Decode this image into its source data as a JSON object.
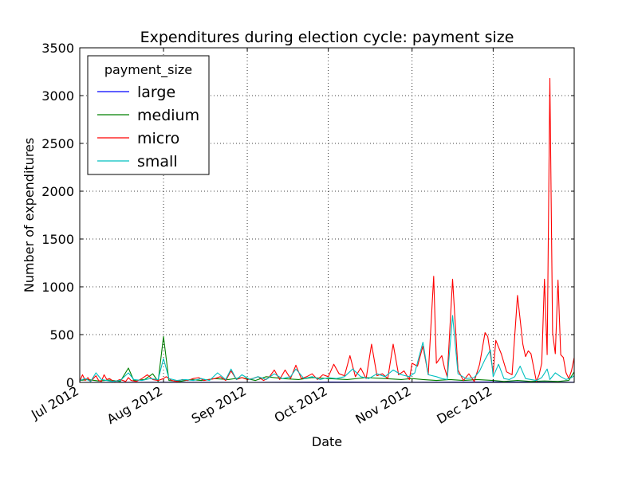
{
  "chart_data": {
    "type": "line",
    "title": "Expenditures during election cycle: payment size",
    "xlabel": "Date",
    "ylabel": "Number of expenditures",
    "xlim": [
      "2012-07-01",
      "2012-12-31"
    ],
    "ylim": [
      0,
      3500
    ],
    "y_ticks": [
      0,
      500,
      1000,
      1500,
      2000,
      2500,
      3000,
      3500
    ],
    "x_ticks": [
      {
        "date": "2012-07-01",
        "label": "Jul 2012"
      },
      {
        "date": "2012-08-01",
        "label": "Aug 2012"
      },
      {
        "date": "2012-09-01",
        "label": "Sep 2012"
      },
      {
        "date": "2012-10-01",
        "label": "Oct 2012"
      },
      {
        "date": "2012-11-01",
        "label": "Nov 2012"
      },
      {
        "date": "2012-12-01",
        "label": "Dec 2012"
      }
    ],
    "grid": true,
    "legend": {
      "title": "payment_size",
      "position": "top-left"
    },
    "series": [
      {
        "name": "large",
        "color": "#0000ff",
        "points": [
          [
            "2012-07-01",
            0
          ],
          [
            "2012-08-01",
            2
          ],
          [
            "2012-09-01",
            1
          ],
          [
            "2012-10-01",
            3
          ],
          [
            "2012-11-01",
            2
          ],
          [
            "2012-12-01",
            5
          ],
          [
            "2012-12-31",
            2
          ]
        ]
      },
      {
        "name": "medium",
        "color": "#008000",
        "points": [
          [
            "2012-07-01",
            20
          ],
          [
            "2012-07-04",
            30
          ],
          [
            "2012-07-08",
            15
          ],
          [
            "2012-07-12",
            25
          ],
          [
            "2012-07-16",
            10
          ],
          [
            "2012-07-19",
            150
          ],
          [
            "2012-07-21",
            20
          ],
          [
            "2012-07-25",
            30
          ],
          [
            "2012-07-28",
            90
          ],
          [
            "2012-07-30",
            10
          ],
          [
            "2012-08-01",
            480
          ],
          [
            "2012-08-03",
            20
          ],
          [
            "2012-08-07",
            10
          ],
          [
            "2012-08-11",
            30
          ],
          [
            "2012-08-15",
            20
          ],
          [
            "2012-08-20",
            40
          ],
          [
            "2012-08-25",
            30
          ],
          [
            "2012-08-30",
            50
          ],
          [
            "2012-09-04",
            20
          ],
          [
            "2012-09-08",
            60
          ],
          [
            "2012-09-14",
            40
          ],
          [
            "2012-09-20",
            30
          ],
          [
            "2012-09-25",
            50
          ],
          [
            "2012-10-01",
            40
          ],
          [
            "2012-10-08",
            30
          ],
          [
            "2012-10-15",
            50
          ],
          [
            "2012-10-22",
            40
          ],
          [
            "2012-10-28",
            30
          ],
          [
            "2012-11-01",
            40
          ],
          [
            "2012-11-05",
            30
          ],
          [
            "2012-11-10",
            20
          ],
          [
            "2012-11-15",
            30
          ],
          [
            "2012-11-20",
            20
          ],
          [
            "2012-11-25",
            30
          ],
          [
            "2012-12-01",
            20
          ],
          [
            "2012-12-05",
            10
          ],
          [
            "2012-12-10",
            20
          ],
          [
            "2012-12-15",
            10
          ],
          [
            "2012-12-20",
            15
          ],
          [
            "2012-12-25",
            10
          ],
          [
            "2012-12-29",
            20
          ],
          [
            "2012-12-31",
            110
          ]
        ]
      },
      {
        "name": "micro",
        "color": "#ff0000",
        "points": [
          [
            "2012-07-01",
            10
          ],
          [
            "2012-07-02",
            80
          ],
          [
            "2012-07-03",
            20
          ],
          [
            "2012-07-04",
            50
          ],
          [
            "2012-07-05",
            10
          ],
          [
            "2012-07-06",
            40
          ],
          [
            "2012-07-07",
            70
          ],
          [
            "2012-07-08",
            20
          ],
          [
            "2012-07-09",
            10
          ],
          [
            "2012-07-10",
            80
          ],
          [
            "2012-07-11",
            30
          ],
          [
            "2012-07-12",
            40
          ],
          [
            "2012-07-13",
            20
          ],
          [
            "2012-07-14",
            10
          ],
          [
            "2012-07-16",
            30
          ],
          [
            "2012-07-18",
            10
          ],
          [
            "2012-07-19",
            50
          ],
          [
            "2012-07-20",
            20
          ],
          [
            "2012-07-22",
            10
          ],
          [
            "2012-07-24",
            40
          ],
          [
            "2012-07-26",
            80
          ],
          [
            "2012-07-28",
            30
          ],
          [
            "2012-07-30",
            20
          ],
          [
            "2012-08-01",
            40
          ],
          [
            "2012-08-02",
            60
          ],
          [
            "2012-08-04",
            20
          ],
          [
            "2012-08-06",
            10
          ],
          [
            "2012-08-08",
            30
          ],
          [
            "2012-08-10",
            20
          ],
          [
            "2012-08-12",
            40
          ],
          [
            "2012-08-14",
            50
          ],
          [
            "2012-08-16",
            20
          ],
          [
            "2012-08-18",
            30
          ],
          [
            "2012-08-20",
            40
          ],
          [
            "2012-08-22",
            60
          ],
          [
            "2012-08-24",
            20
          ],
          [
            "2012-08-26",
            120
          ],
          [
            "2012-08-28",
            30
          ],
          [
            "2012-08-30",
            50
          ],
          [
            "2012-09-01",
            30
          ],
          [
            "2012-09-03",
            40
          ],
          [
            "2012-09-05",
            60
          ],
          [
            "2012-09-07",
            20
          ],
          [
            "2012-09-09",
            50
          ],
          [
            "2012-09-11",
            130
          ],
          [
            "2012-09-13",
            30
          ],
          [
            "2012-09-15",
            130
          ],
          [
            "2012-09-17",
            40
          ],
          [
            "2012-09-19",
            180
          ],
          [
            "2012-09-21",
            40
          ],
          [
            "2012-09-23",
            60
          ],
          [
            "2012-09-25",
            90
          ],
          [
            "2012-09-27",
            30
          ],
          [
            "2012-09-29",
            80
          ],
          [
            "2012-10-01",
            60
          ],
          [
            "2012-10-03",
            190
          ],
          [
            "2012-10-05",
            90
          ],
          [
            "2012-10-07",
            70
          ],
          [
            "2012-10-09",
            280
          ],
          [
            "2012-10-11",
            60
          ],
          [
            "2012-10-13",
            150
          ],
          [
            "2012-10-15",
            40
          ],
          [
            "2012-10-17",
            400
          ],
          [
            "2012-10-19",
            70
          ],
          [
            "2012-10-21",
            90
          ],
          [
            "2012-10-23",
            40
          ],
          [
            "2012-10-25",
            400
          ],
          [
            "2012-10-27",
            80
          ],
          [
            "2012-10-29",
            120
          ],
          [
            "2012-10-31",
            30
          ],
          [
            "2012-11-01",
            200
          ],
          [
            "2012-11-03",
            170
          ],
          [
            "2012-11-05",
            380
          ],
          [
            "2012-11-07",
            80
          ],
          [
            "2012-11-09",
            1110
          ],
          [
            "2012-11-10",
            200
          ],
          [
            "2012-11-12",
            280
          ],
          [
            "2012-11-13",
            150
          ],
          [
            "2012-11-14",
            60
          ],
          [
            "2012-11-16",
            1080
          ],
          [
            "2012-11-18",
            130
          ],
          [
            "2012-11-20",
            20
          ],
          [
            "2012-11-22",
            90
          ],
          [
            "2012-11-24",
            10
          ],
          [
            "2012-11-26",
            190
          ],
          [
            "2012-11-28",
            520
          ],
          [
            "2012-11-29",
            480
          ],
          [
            "2012-12-01",
            100
          ],
          [
            "2012-12-02",
            440
          ],
          [
            "2012-12-04",
            300
          ],
          [
            "2012-12-06",
            110
          ],
          [
            "2012-12-08",
            80
          ],
          [
            "2012-12-10",
            910
          ],
          [
            "2012-12-12",
            400
          ],
          [
            "2012-12-13",
            270
          ],
          [
            "2012-12-14",
            330
          ],
          [
            "2012-12-15",
            300
          ],
          [
            "2012-12-17",
            10
          ],
          [
            "2012-12-18",
            80
          ],
          [
            "2012-12-19",
            200
          ],
          [
            "2012-12-20",
            1080
          ],
          [
            "2012-12-21",
            290
          ],
          [
            "2012-12-22",
            3180
          ],
          [
            "2012-12-23",
            520
          ],
          [
            "2012-12-24",
            300
          ],
          [
            "2012-12-25",
            1070
          ],
          [
            "2012-12-26",
            290
          ],
          [
            "2012-12-27",
            260
          ],
          [
            "2012-12-28",
            100
          ],
          [
            "2012-12-29",
            40
          ],
          [
            "2012-12-30",
            120
          ],
          [
            "2012-12-31",
            260
          ]
        ]
      },
      {
        "name": "small",
        "color": "#00bfbf",
        "points": [
          [
            "2012-07-01",
            20
          ],
          [
            "2012-07-03",
            40
          ],
          [
            "2012-07-05",
            10
          ],
          [
            "2012-07-07",
            100
          ],
          [
            "2012-07-09",
            30
          ],
          [
            "2012-07-11",
            20
          ],
          [
            "2012-07-13",
            10
          ],
          [
            "2012-07-16",
            20
          ],
          [
            "2012-07-19",
            100
          ],
          [
            "2012-07-21",
            30
          ],
          [
            "2012-07-24",
            20
          ],
          [
            "2012-07-27",
            40
          ],
          [
            "2012-07-30",
            30
          ],
          [
            "2012-08-01",
            250
          ],
          [
            "2012-08-03",
            40
          ],
          [
            "2012-08-06",
            20
          ],
          [
            "2012-08-09",
            30
          ],
          [
            "2012-08-12",
            20
          ],
          [
            "2012-08-15",
            40
          ],
          [
            "2012-08-18",
            20
          ],
          [
            "2012-08-21",
            100
          ],
          [
            "2012-08-24",
            30
          ],
          [
            "2012-08-26",
            140
          ],
          [
            "2012-08-28",
            30
          ],
          [
            "2012-08-30",
            80
          ],
          [
            "2012-09-02",
            30
          ],
          [
            "2012-09-05",
            60
          ],
          [
            "2012-09-08",
            30
          ],
          [
            "2012-09-11",
            90
          ],
          [
            "2012-09-14",
            40
          ],
          [
            "2012-09-17",
            60
          ],
          [
            "2012-09-19",
            140
          ],
          [
            "2012-09-22",
            40
          ],
          [
            "2012-09-25",
            60
          ],
          [
            "2012-09-28",
            30
          ],
          [
            "2012-10-01",
            50
          ],
          [
            "2012-10-04",
            40
          ],
          [
            "2012-10-07",
            60
          ],
          [
            "2012-10-10",
            140
          ],
          [
            "2012-10-13",
            60
          ],
          [
            "2012-10-16",
            40
          ],
          [
            "2012-10-19",
            90
          ],
          [
            "2012-10-22",
            60
          ],
          [
            "2012-10-25",
            130
          ],
          [
            "2012-10-28",
            80
          ],
          [
            "2012-10-31",
            60
          ],
          [
            "2012-11-02",
            100
          ],
          [
            "2012-11-05",
            420
          ],
          [
            "2012-11-07",
            80
          ],
          [
            "2012-11-10",
            60
          ],
          [
            "2012-11-12",
            40
          ],
          [
            "2012-11-14",
            30
          ],
          [
            "2012-11-16",
            700
          ],
          [
            "2012-11-18",
            90
          ],
          [
            "2012-11-21",
            40
          ],
          [
            "2012-11-24",
            50
          ],
          [
            "2012-11-26",
            120
          ],
          [
            "2012-11-28",
            240
          ],
          [
            "2012-11-30",
            340
          ],
          [
            "2012-12-01",
            60
          ],
          [
            "2012-12-03",
            190
          ],
          [
            "2012-12-05",
            40
          ],
          [
            "2012-12-07",
            30
          ],
          [
            "2012-12-09",
            60
          ],
          [
            "2012-12-11",
            170
          ],
          [
            "2012-12-13",
            40
          ],
          [
            "2012-12-15",
            30
          ],
          [
            "2012-12-17",
            20
          ],
          [
            "2012-12-19",
            50
          ],
          [
            "2012-12-21",
            140
          ],
          [
            "2012-12-22",
            30
          ],
          [
            "2012-12-24",
            100
          ],
          [
            "2012-12-26",
            60
          ],
          [
            "2012-12-28",
            30
          ],
          [
            "2012-12-30",
            50
          ],
          [
            "2012-12-31",
            70
          ]
        ]
      }
    ]
  }
}
